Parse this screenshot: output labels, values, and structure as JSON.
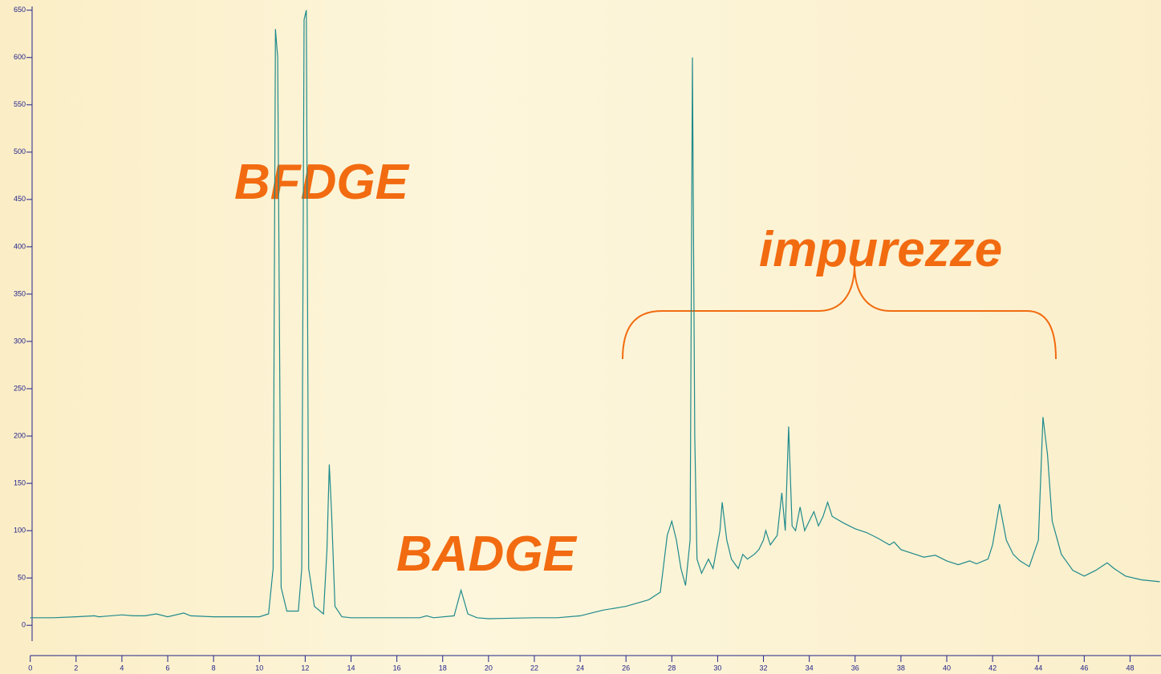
{
  "chart_data": {
    "type": "line",
    "annotations": [
      "BFDGE",
      "BADGE",
      "impurezze"
    ],
    "x": [
      0,
      1,
      2,
      2.8,
      3,
      4,
      4.5,
      5,
      5.5,
      6,
      6.7,
      7,
      8,
      9,
      10,
      10.4,
      10.6,
      10.7,
      10.8,
      10.95,
      11.2,
      11.7,
      11.85,
      11.95,
      12.05,
      12.15,
      12.4,
      12.8,
      12.95,
      13.05,
      13.15,
      13.3,
      13.6,
      14,
      15,
      16,
      17,
      17.3,
      17.6,
      18.5,
      18.8,
      19.1,
      19.5,
      20,
      22,
      23,
      24,
      25,
      26,
      27,
      27.5,
      27.8,
      28,
      28.2,
      28.4,
      28.6,
      28.8,
      28.9,
      29.0,
      29.1,
      29.3,
      29.6,
      29.8,
      30.1,
      30.2,
      30.4,
      30.6,
      30.9,
      31.1,
      31.3,
      31.6,
      31.8,
      32,
      32.1,
      32.3,
      32.6,
      32.8,
      32.95,
      33.1,
      33.25,
      33.4,
      33.6,
      33.8,
      34,
      34.2,
      34.4,
      34.6,
      34.8,
      35,
      35.5,
      36,
      36.5,
      37,
      37.5,
      37.7,
      38,
      39,
      39.5,
      40,
      40.5,
      41,
      41.3,
      41.8,
      42,
      42.3,
      42.6,
      42.9,
      43.2,
      43.6,
      44,
      44.2,
      44.4,
      44.6,
      45,
      45.5,
      46,
      46.5,
      47,
      47.3,
      47.8,
      48.5,
      49.3
    ],
    "values": [
      8,
      8,
      9,
      10,
      9,
      11,
      10,
      10,
      12,
      9,
      13,
      10,
      9,
      9,
      9,
      12,
      60,
      630,
      600,
      40,
      15,
      15,
      60,
      640,
      650,
      60,
      20,
      12,
      80,
      170,
      120,
      20,
      9,
      8,
      8,
      8,
      8,
      10,
      8,
      10,
      37,
      12,
      8,
      7,
      8,
      8,
      10,
      16,
      20,
      27,
      35,
      95,
      110,
      90,
      60,
      42,
      90,
      600,
      200,
      70,
      55,
      70,
      60,
      100,
      130,
      90,
      70,
      60,
      75,
      70,
      75,
      80,
      90,
      100,
      85,
      95,
      140,
      100,
      210,
      105,
      100,
      125,
      100,
      110,
      120,
      105,
      115,
      130,
      115,
      108,
      102,
      98,
      92,
      85,
      88,
      80,
      72,
      74,
      68,
      64,
      68,
      65,
      70,
      85,
      128,
      90,
      75,
      68,
      62,
      90,
      220,
      180,
      110,
      75,
      58,
      52,
      58,
      66,
      60,
      52,
      48,
      46
    ],
    "color": "#1f8a8c",
    "xlim": [
      0,
      49.35
    ],
    "ylim": [
      -32,
      654
    ],
    "xticks": [
      0,
      2,
      4,
      6,
      8,
      10,
      12,
      14,
      16,
      18,
      20,
      22,
      24,
      26,
      28,
      30,
      32,
      34,
      36,
      38,
      40,
      42,
      44,
      46,
      48
    ],
    "yticks": [
      0,
      50,
      100,
      150,
      200,
      250,
      300,
      350,
      400,
      450,
      500,
      550,
      600,
      650
    ]
  }
}
